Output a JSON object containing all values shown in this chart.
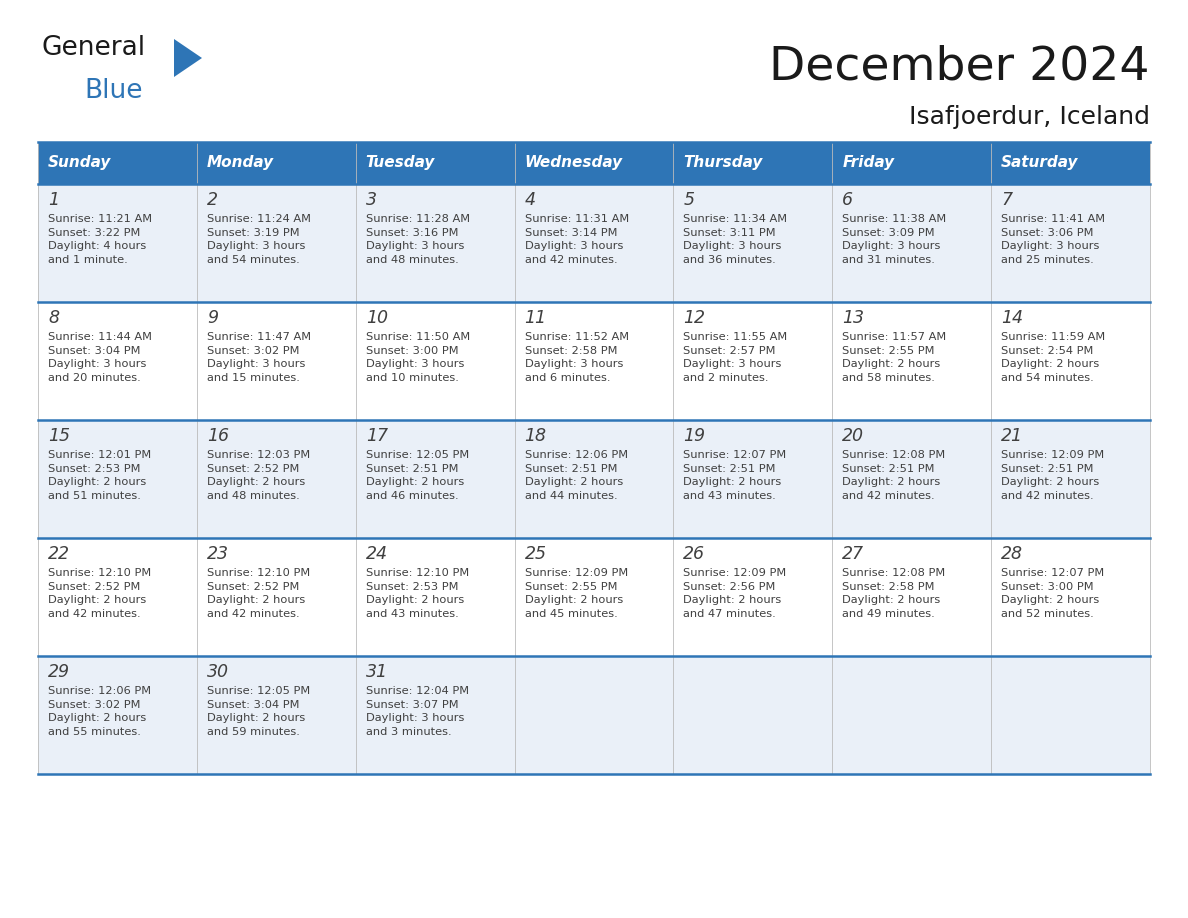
{
  "title": "December 2024",
  "subtitle": "Isafjoerdur, Iceland",
  "header_color": "#2e75b6",
  "header_text_color": "#ffffff",
  "cell_bg_odd": "#eaf0f8",
  "cell_bg_even": "#ffffff",
  "border_color": "#2e75b6",
  "text_color": "#404040",
  "days_of_week": [
    "Sunday",
    "Monday",
    "Tuesday",
    "Wednesday",
    "Thursday",
    "Friday",
    "Saturday"
  ],
  "weeks": [
    [
      {
        "day": "1",
        "sunrise": "11:21 AM",
        "sunset": "3:22 PM",
        "daylight": "4 hours\nand 1 minute."
      },
      {
        "day": "2",
        "sunrise": "11:24 AM",
        "sunset": "3:19 PM",
        "daylight": "3 hours\nand 54 minutes."
      },
      {
        "day": "3",
        "sunrise": "11:28 AM",
        "sunset": "3:16 PM",
        "daylight": "3 hours\nand 48 minutes."
      },
      {
        "day": "4",
        "sunrise": "11:31 AM",
        "sunset": "3:14 PM",
        "daylight": "3 hours\nand 42 minutes."
      },
      {
        "day": "5",
        "sunrise": "11:34 AM",
        "sunset": "3:11 PM",
        "daylight": "3 hours\nand 36 minutes."
      },
      {
        "day": "6",
        "sunrise": "11:38 AM",
        "sunset": "3:09 PM",
        "daylight": "3 hours\nand 31 minutes."
      },
      {
        "day": "7",
        "sunrise": "11:41 AM",
        "sunset": "3:06 PM",
        "daylight": "3 hours\nand 25 minutes."
      }
    ],
    [
      {
        "day": "8",
        "sunrise": "11:44 AM",
        "sunset": "3:04 PM",
        "daylight": "3 hours\nand 20 minutes."
      },
      {
        "day": "9",
        "sunrise": "11:47 AM",
        "sunset": "3:02 PM",
        "daylight": "3 hours\nand 15 minutes."
      },
      {
        "day": "10",
        "sunrise": "11:50 AM",
        "sunset": "3:00 PM",
        "daylight": "3 hours\nand 10 minutes."
      },
      {
        "day": "11",
        "sunrise": "11:52 AM",
        "sunset": "2:58 PM",
        "daylight": "3 hours\nand 6 minutes."
      },
      {
        "day": "12",
        "sunrise": "11:55 AM",
        "sunset": "2:57 PM",
        "daylight": "3 hours\nand 2 minutes."
      },
      {
        "day": "13",
        "sunrise": "11:57 AM",
        "sunset": "2:55 PM",
        "daylight": "2 hours\nand 58 minutes."
      },
      {
        "day": "14",
        "sunrise": "11:59 AM",
        "sunset": "2:54 PM",
        "daylight": "2 hours\nand 54 minutes."
      }
    ],
    [
      {
        "day": "15",
        "sunrise": "12:01 PM",
        "sunset": "2:53 PM",
        "daylight": "2 hours\nand 51 minutes."
      },
      {
        "day": "16",
        "sunrise": "12:03 PM",
        "sunset": "2:52 PM",
        "daylight": "2 hours\nand 48 minutes."
      },
      {
        "day": "17",
        "sunrise": "12:05 PM",
        "sunset": "2:51 PM",
        "daylight": "2 hours\nand 46 minutes."
      },
      {
        "day": "18",
        "sunrise": "12:06 PM",
        "sunset": "2:51 PM",
        "daylight": "2 hours\nand 44 minutes."
      },
      {
        "day": "19",
        "sunrise": "12:07 PM",
        "sunset": "2:51 PM",
        "daylight": "2 hours\nand 43 minutes."
      },
      {
        "day": "20",
        "sunrise": "12:08 PM",
        "sunset": "2:51 PM",
        "daylight": "2 hours\nand 42 minutes."
      },
      {
        "day": "21",
        "sunrise": "12:09 PM",
        "sunset": "2:51 PM",
        "daylight": "2 hours\nand 42 minutes."
      }
    ],
    [
      {
        "day": "22",
        "sunrise": "12:10 PM",
        "sunset": "2:52 PM",
        "daylight": "2 hours\nand 42 minutes."
      },
      {
        "day": "23",
        "sunrise": "12:10 PM",
        "sunset": "2:52 PM",
        "daylight": "2 hours\nand 42 minutes."
      },
      {
        "day": "24",
        "sunrise": "12:10 PM",
        "sunset": "2:53 PM",
        "daylight": "2 hours\nand 43 minutes."
      },
      {
        "day": "25",
        "sunrise": "12:09 PM",
        "sunset": "2:55 PM",
        "daylight": "2 hours\nand 45 minutes."
      },
      {
        "day": "26",
        "sunrise": "12:09 PM",
        "sunset": "2:56 PM",
        "daylight": "2 hours\nand 47 minutes."
      },
      {
        "day": "27",
        "sunrise": "12:08 PM",
        "sunset": "2:58 PM",
        "daylight": "2 hours\nand 49 minutes."
      },
      {
        "day": "28",
        "sunrise": "12:07 PM",
        "sunset": "3:00 PM",
        "daylight": "2 hours\nand 52 minutes."
      }
    ],
    [
      {
        "day": "29",
        "sunrise": "12:06 PM",
        "sunset": "3:02 PM",
        "daylight": "2 hours\nand 55 minutes."
      },
      {
        "day": "30",
        "sunrise": "12:05 PM",
        "sunset": "3:04 PM",
        "daylight": "2 hours\nand 59 minutes."
      },
      {
        "day": "31",
        "sunrise": "12:04 PM",
        "sunset": "3:07 PM",
        "daylight": "3 hours\nand 3 minutes."
      },
      null,
      null,
      null,
      null
    ]
  ],
  "logo_color_general": "#1a1a1a",
  "logo_color_blue": "#2e75b6",
  "logo_text_general": "General",
  "logo_text_blue": "Blue"
}
